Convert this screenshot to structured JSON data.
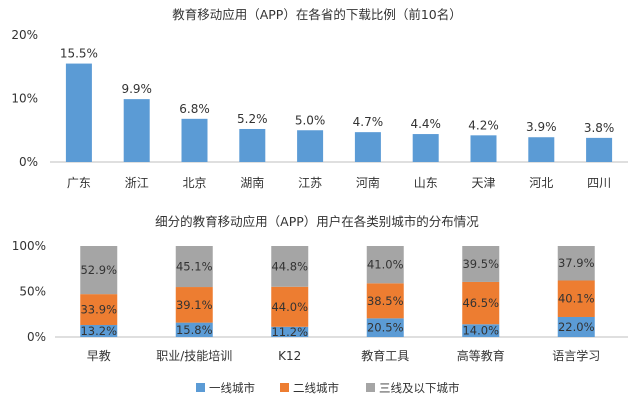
{
  "colors": {
    "bar": "#5b9bd5",
    "tier1": "#5b9bd5",
    "tier2": "#ed7d31",
    "tier3": "#a5a5a5",
    "axis": "#bfbfbf",
    "text": "#333333"
  },
  "chart_data": [
    {
      "type": "bar",
      "title": "教育移动应用（APP）在各省的下载比例（前10名）",
      "categories": [
        "广东",
        "浙江",
        "北京",
        "湖南",
        "江苏",
        "河南",
        "山东",
        "天津",
        "河北",
        "四川"
      ],
      "values": [
        15.5,
        9.9,
        6.8,
        5.2,
        5.0,
        4.7,
        4.4,
        4.2,
        3.9,
        3.8
      ],
      "value_labels": [
        "15.5%",
        "9.9%",
        "6.8%",
        "5.2%",
        "5.0%",
        "4.7%",
        "4.4%",
        "4.2%",
        "3.9%",
        "3.8%"
      ],
      "ylim": [
        0,
        20
      ],
      "yticks": [
        0,
        10,
        20
      ],
      "ytick_labels": [
        "0%",
        "10%",
        "20%"
      ],
      "grid": false
    },
    {
      "type": "bar",
      "stacked": true,
      "title": "细分的教育移动应用（APP）用户在各类别城市的分布情况",
      "categories": [
        "早教",
        "职业/技能培训",
        "K12",
        "教育工具",
        "高等教育",
        "语言学习"
      ],
      "series": [
        {
          "name": "一线城市",
          "values": [
            13.2,
            15.8,
            11.2,
            20.5,
            14.0,
            22.0
          ],
          "labels": [
            "13.2%",
            "15.8%",
            "11.2%",
            "20.5%",
            "14.0%",
            "22.0%"
          ]
        },
        {
          "name": "二线城市",
          "values": [
            33.9,
            39.1,
            44.0,
            38.5,
            46.5,
            40.1
          ],
          "labels": [
            "33.9%",
            "39.1%",
            "44.0%",
            "38.5%",
            "46.5%",
            "40.1%"
          ]
        },
        {
          "name": "三线及以下城市",
          "values": [
            52.9,
            45.1,
            44.8,
            41.0,
            39.5,
            37.9
          ],
          "labels": [
            "52.9%",
            "45.1%",
            "44.8%",
            "41.0%",
            "39.5%",
            "37.9%"
          ]
        }
      ],
      "ylim": [
        0,
        100
      ],
      "yticks": [
        0,
        50,
        100
      ],
      "ytick_labels": [
        "0%",
        "50%",
        "100%"
      ],
      "legend": "bottom",
      "grid": false
    }
  ]
}
